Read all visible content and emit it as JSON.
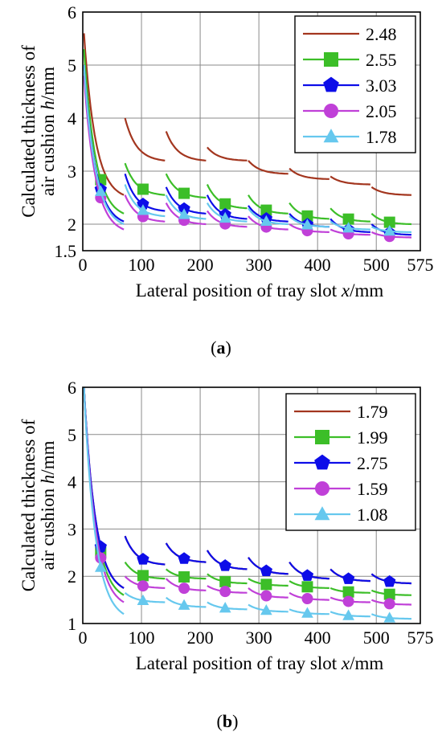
{
  "chart_data": [
    {
      "type": "line",
      "panel_label": "a",
      "xlabel_text": "Lateral position of tray slot ",
      "xlabel_var": "x",
      "xlabel_unit": "/mm",
      "ylabel_line1": "Calculated thickness of",
      "ylabel_line2_text": "air cushion ",
      "ylabel_line2_var": "h",
      "ylabel_line2_unit": "/mm",
      "xlim": [
        0,
        575
      ],
      "ylim": [
        1.5,
        6
      ],
      "xticks": [
        0,
        100,
        200,
        300,
        400,
        500,
        575
      ],
      "yticks": [
        1.5,
        2,
        3,
        4,
        5,
        6
      ],
      "grid": true,
      "legend_position": "top-right",
      "slot_starts": [
        0,
        70,
        140,
        210,
        280,
        350,
        420,
        490
      ],
      "slot_width": 70,
      "series": [
        {
          "name": "2.48",
          "color": "#a3361f",
          "marker": "none",
          "values": [
            [
              5.6,
              2.55
            ],
            [
              4.0,
              3.2
            ],
            [
              3.75,
              3.2
            ],
            [
              3.45,
              3.2
            ],
            [
              3.2,
              2.95
            ],
            [
              3.05,
              2.85
            ],
            [
              2.9,
              2.75
            ],
            [
              2.7,
              2.55
            ]
          ]
        },
        {
          "name": "2.55",
          "color": "#3cbe28",
          "marker": "square",
          "values": [
            [
              5.3,
              2.2
            ],
            [
              3.15,
              2.55
            ],
            [
              2.95,
              2.5
            ],
            [
              2.75,
              2.3
            ],
            [
              2.55,
              2.2
            ],
            [
              2.4,
              2.1
            ],
            [
              2.3,
              2.05
            ],
            [
              2.2,
              2.0
            ]
          ]
        },
        {
          "name": "3.03",
          "color": "#0d0de8",
          "marker": "pentagon",
          "values": [
            [
              5.0,
              2.05
            ],
            [
              2.95,
              2.25
            ],
            [
              2.7,
              2.2
            ],
            [
              2.55,
              2.1
            ],
            [
              2.35,
              2.05
            ],
            [
              2.2,
              1.95
            ],
            [
              2.1,
              1.85
            ],
            [
              2.0,
              1.8
            ]
          ]
        },
        {
          "name": "2.05",
          "color": "#c040d8",
          "marker": "circle",
          "values": [
            [
              4.8,
              1.9
            ],
            [
              2.55,
              2.05
            ],
            [
              2.4,
              2.0
            ],
            [
              2.25,
              1.95
            ],
            [
              2.15,
              1.9
            ],
            [
              2.0,
              1.85
            ],
            [
              1.9,
              1.8
            ],
            [
              1.85,
              1.75
            ]
          ]
        },
        {
          "name": "1.78",
          "color": "#66c8ee",
          "marker": "triangle",
          "values": [
            [
              5.0,
              2.0
            ],
            [
              2.75,
              2.15
            ],
            [
              2.55,
              2.1
            ],
            [
              2.4,
              2.05
            ],
            [
              2.3,
              2.0
            ],
            [
              2.15,
              1.95
            ],
            [
              2.05,
              1.9
            ],
            [
              1.95,
              1.85
            ]
          ]
        }
      ]
    },
    {
      "type": "line",
      "panel_label": "b",
      "xlabel_text": "Lateral position of tray slot ",
      "xlabel_var": "x",
      "xlabel_unit": "/mm",
      "ylabel_line1": "Calculated thickness of",
      "ylabel_line2_text": "air cushion ",
      "ylabel_line2_var": "h",
      "ylabel_line2_unit": "/mm",
      "xlim": [
        0,
        575
      ],
      "ylim": [
        1,
        6
      ],
      "xticks": [
        0,
        100,
        200,
        300,
        400,
        500,
        575
      ],
      "yticks": [
        1,
        2,
        3,
        4,
        5,
        6
      ],
      "grid": true,
      "legend_position": "top-right",
      "slot_starts": [
        0,
        70,
        140,
        210,
        280,
        350,
        420,
        490
      ],
      "slot_width": 70,
      "series": [
        {
          "name": "1.79",
          "color": "#a3361f",
          "marker": "none",
          "values": [
            [
              6.0,
              1.75
            ],
            [
              2.85,
              2.25
            ],
            [
              2.7,
              2.3
            ],
            [
              2.55,
              2.15
            ],
            [
              2.4,
              2.05
            ],
            [
              2.3,
              1.95
            ],
            [
              2.15,
              1.9
            ],
            [
              2.05,
              1.85
            ]
          ]
        },
        {
          "name": "1.99",
          "color": "#3cbe28",
          "marker": "square",
          "values": [
            [
              6.0,
              1.6
            ],
            [
              2.3,
              1.95
            ],
            [
              2.15,
              1.95
            ],
            [
              2.05,
              1.85
            ],
            [
              1.95,
              1.8
            ],
            [
              1.9,
              1.75
            ],
            [
              1.75,
              1.65
            ],
            [
              1.7,
              1.6
            ]
          ]
        },
        {
          "name": "2.75",
          "color": "#0d0de8",
          "marker": "pentagon",
          "values": [
            [
              6.0,
              1.75
            ],
            [
              2.85,
              2.25
            ],
            [
              2.7,
              2.3
            ],
            [
              2.55,
              2.15
            ],
            [
              2.4,
              2.05
            ],
            [
              2.3,
              1.95
            ],
            [
              2.15,
              1.9
            ],
            [
              2.05,
              1.85
            ]
          ]
        },
        {
          "name": "1.59",
          "color": "#c040d8",
          "marker": "circle",
          "values": [
            [
              6.0,
              1.45
            ],
            [
              2.0,
              1.75
            ],
            [
              1.95,
              1.7
            ],
            [
              1.8,
              1.65
            ],
            [
              1.75,
              1.55
            ],
            [
              1.65,
              1.5
            ],
            [
              1.55,
              1.45
            ],
            [
              1.5,
              1.4
            ]
          ]
        },
        {
          "name": "1.08",
          "color": "#66c8ee",
          "marker": "triangle",
          "values": [
            [
              6.0,
              1.2
            ],
            [
              1.65,
              1.45
            ],
            [
              1.55,
              1.35
            ],
            [
              1.45,
              1.3
            ],
            [
              1.4,
              1.25
            ],
            [
              1.3,
              1.2
            ],
            [
              1.25,
              1.15
            ],
            [
              1.2,
              1.1
            ]
          ]
        }
      ]
    }
  ]
}
